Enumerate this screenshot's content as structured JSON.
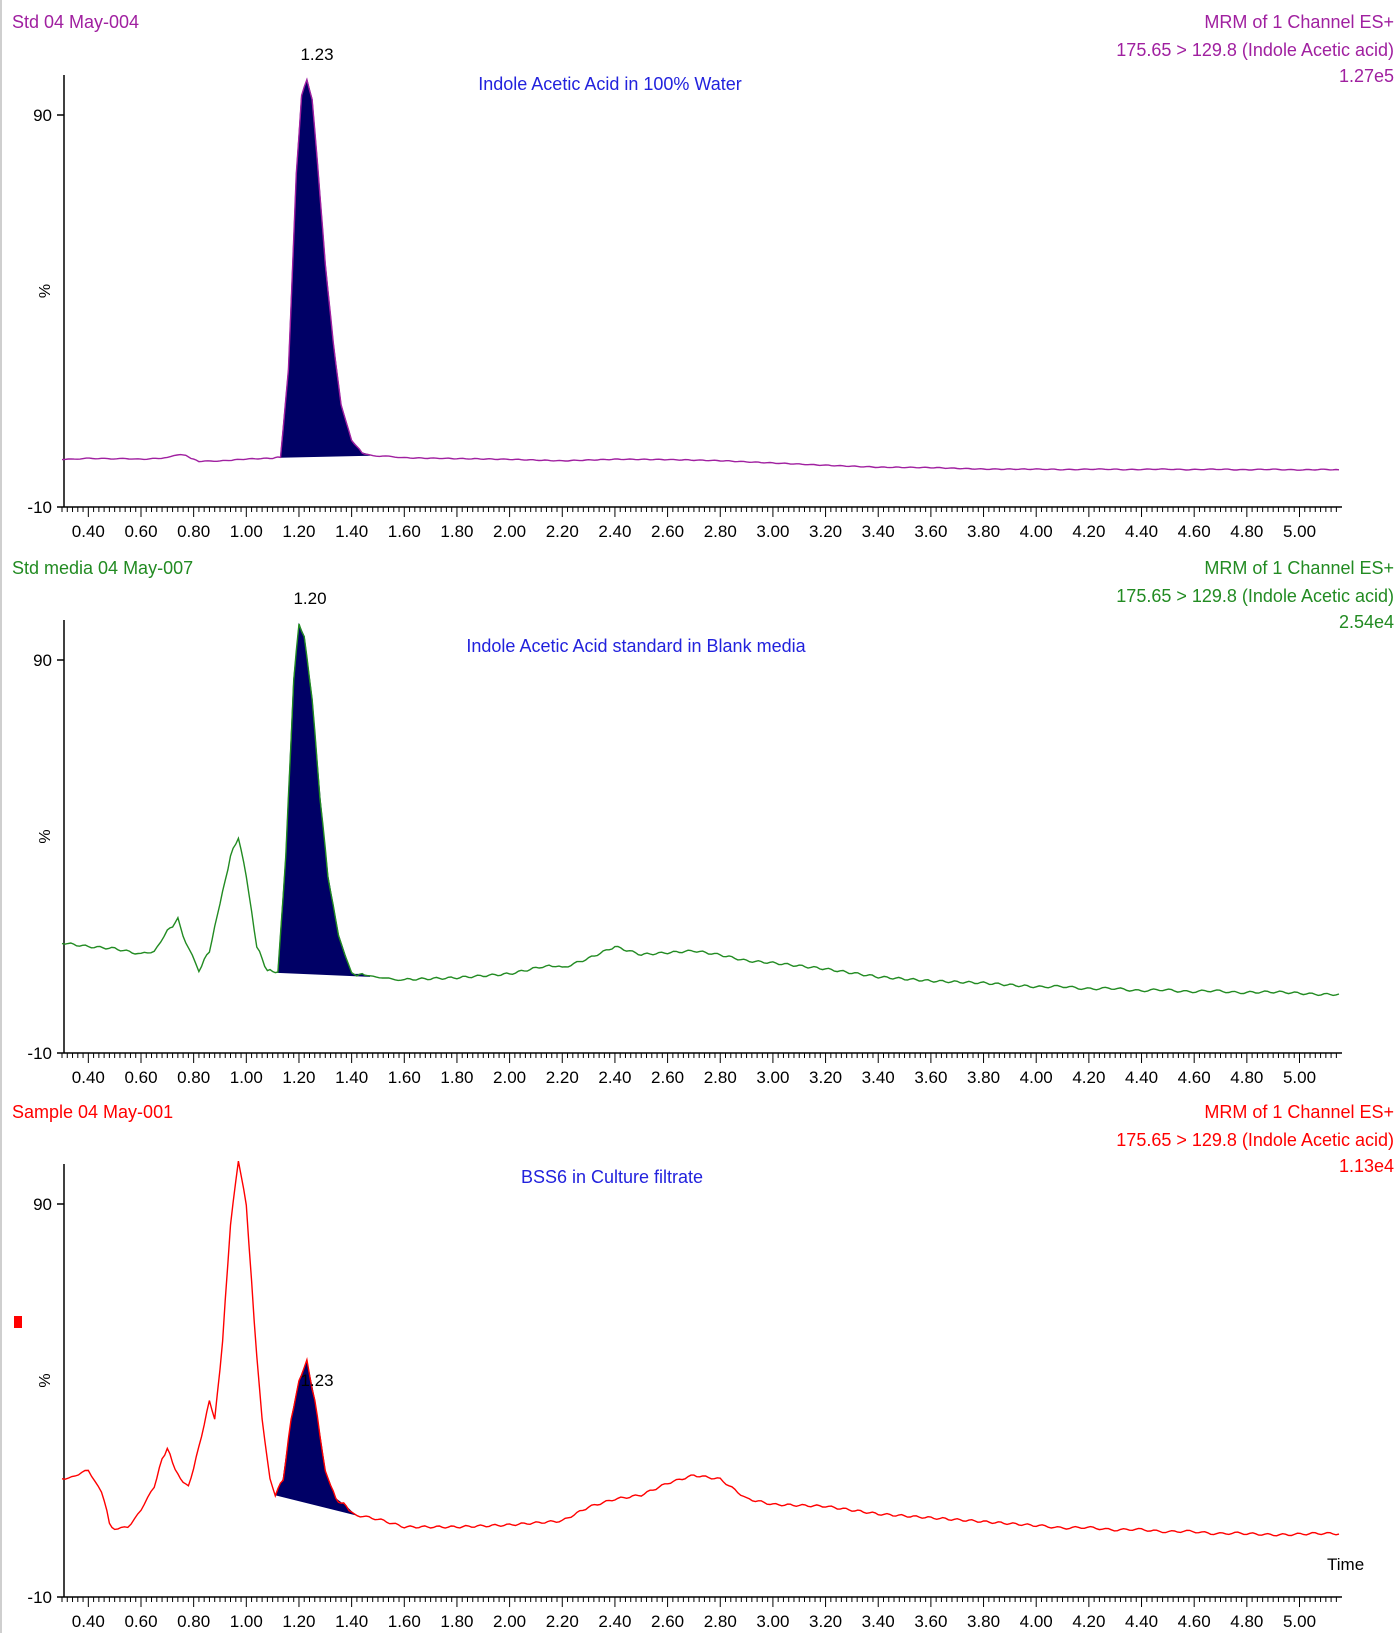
{
  "panels": [
    {
      "sample_name": "Std 04 May-004",
      "method": "MRM of 1 Channel ES+",
      "transition": "175.65 > 129.8 (Indole Acetic acid)",
      "intensity": "1.27e5",
      "annotation": "Indole Acetic Acid in 100% Water",
      "peak_label": "1.23",
      "y_tick_top": "90",
      "y_tick_bottom": "-10",
      "y_axis_label": "%"
    },
    {
      "sample_name": "Std media 04 May-007",
      "method": "MRM of 1 Channel ES+",
      "transition": "175.65 > 129.8 (Indole Acetic acid)",
      "intensity": "2.54e4",
      "annotation": "Indole Acetic Acid standard in Blank media",
      "peak_label": "1.20",
      "y_tick_top": "90",
      "y_tick_bottom": "-10",
      "y_axis_label": "%"
    },
    {
      "sample_name": "Sample 04 May-001",
      "method": "MRM of 1 Channel ES+",
      "transition": "175.65 > 129.8 (Indole Acetic acid)",
      "intensity": "1.13e4",
      "annotation": "BSS6 in Culture filtrate",
      "peak_label": "1.23",
      "y_tick_top": "90",
      "y_tick_bottom": "-10",
      "y_axis_label": "%"
    }
  ],
  "x_axis_title": "Time",
  "x_tick_labels": [
    "0.40",
    "0.60",
    "0.80",
    "1.00",
    "1.20",
    "1.40",
    "1.60",
    "1.80",
    "2.00",
    "2.20",
    "2.40",
    "2.60",
    "2.80",
    "3.00",
    "3.20",
    "3.40",
    "3.60",
    "3.80",
    "4.00",
    "4.20",
    "4.40",
    "4.60",
    "4.80",
    "5.00"
  ],
  "colors": {
    "panel1_trace": "#a020a0",
    "panel2_trace": "#228b22",
    "panel3_trace": "#ff0000",
    "peak_fill": "#000066",
    "annotation": "#2222dd",
    "marker": "#ff0000"
  },
  "chart_data": [
    {
      "type": "line",
      "title": "Indole Acetic Acid in 100% Water",
      "ylabel": "%",
      "xlabel": "Time",
      "xlim": [
        0.3,
        5.15
      ],
      "ylim": [
        -10,
        100
      ],
      "shaded_peak": {
        "rt": 1.23,
        "start": 1.13,
        "end": 1.47
      },
      "series": [
        {
          "name": "175.65 > 129.8 (Indole Acetic acid)",
          "x": [
            0.3,
            0.45,
            0.6,
            0.7,
            0.75,
            0.78,
            0.82,
            0.9,
            1.0,
            1.1,
            1.13,
            1.16,
            1.19,
            1.21,
            1.23,
            1.25,
            1.27,
            1.3,
            1.33,
            1.36,
            1.4,
            1.44,
            1.47,
            1.6,
            1.8,
            2.0,
            2.2,
            2.4,
            2.6,
            2.8,
            3.0,
            3.2,
            3.4,
            3.6,
            3.8,
            4.0,
            4.5,
            5.15
          ],
          "y": [
            2.2,
            2.4,
            2.2,
            2.6,
            3.5,
            2.8,
            1.6,
            1.8,
            2.3,
            2.5,
            2.7,
            25,
            75,
            95,
            99,
            94,
            78,
            52,
            32,
            16,
            7,
            3.8,
            3.2,
            2.6,
            2.4,
            2.2,
            1.8,
            2.2,
            2.1,
            1.8,
            1.2,
            0.6,
            0.1,
            0.0,
            -0.4,
            -0.4,
            -0.4,
            -0.5
          ]
        }
      ]
    },
    {
      "type": "line",
      "title": "Indole Acetic Acid standard in Blank media",
      "ylabel": "%",
      "xlabel": "Time",
      "xlim": [
        0.3,
        5.15
      ],
      "ylim": [
        -10,
        100
      ],
      "shaded_peak": {
        "rt": 1.2,
        "start": 1.12,
        "end": 1.47
      },
      "series": [
        {
          "name": "175.65 > 129.8 (Indole Acetic acid)",
          "x": [
            0.3,
            0.4,
            0.5,
            0.6,
            0.65,
            0.7,
            0.74,
            0.77,
            0.82,
            0.86,
            0.9,
            0.94,
            0.97,
            1.0,
            1.04,
            1.08,
            1.12,
            1.15,
            1.18,
            1.2,
            1.22,
            1.25,
            1.28,
            1.31,
            1.35,
            1.4,
            1.44,
            1.47,
            1.6,
            1.8,
            2.0,
            2.1,
            2.15,
            2.2,
            2.3,
            2.4,
            2.5,
            2.6,
            2.7,
            2.8,
            2.9,
            3.0,
            3.2,
            3.4,
            3.6,
            3.8,
            4.0,
            4.4,
            4.8,
            5.15
          ],
          "y": [
            18,
            17,
            16.5,
            15,
            16,
            21,
            24,
            18,
            11,
            16,
            28,
            40,
            45,
            35,
            17,
            11,
            10.5,
            40,
            85,
            99,
            96,
            80,
            55,
            35,
            20,
            10,
            10,
            9.5,
            8.5,
            9,
            10,
            11.5,
            12.5,
            11.5,
            14,
            17,
            15,
            15.5,
            16,
            15,
            13.5,
            13,
            11.5,
            9.5,
            8.5,
            8,
            7,
            6,
            5.5,
            5
          ]
        }
      ]
    },
    {
      "type": "line",
      "title": "BSS6 in Culture filtrate",
      "ylabel": "%",
      "xlabel": "Time",
      "xlim": [
        0.3,
        5.15
      ],
      "ylim": [
        -10,
        100
      ],
      "shaded_peak": {
        "rt": 1.23,
        "start": 1.11,
        "end": 1.41
      },
      "series": [
        {
          "name": "175.65 > 129.8 (Indole Acetic acid)",
          "x": [
            0.3,
            0.35,
            0.4,
            0.45,
            0.48,
            0.5,
            0.55,
            0.6,
            0.65,
            0.68,
            0.7,
            0.72,
            0.75,
            0.78,
            0.82,
            0.86,
            0.88,
            0.91,
            0.94,
            0.97,
            1.0,
            1.03,
            1.06,
            1.09,
            1.11,
            1.14,
            1.17,
            1.2,
            1.23,
            1.26,
            1.3,
            1.34,
            1.38,
            1.41,
            1.5,
            1.6,
            1.8,
            2.0,
            2.2,
            2.3,
            2.4,
            2.5,
            2.6,
            2.7,
            2.8,
            2.9,
            3.0,
            3.2,
            3.4,
            3.6,
            3.8,
            4.0,
            4.4,
            4.8,
            5.15
          ],
          "y": [
            20,
            21,
            22,
            17,
            9,
            7,
            8,
            12,
            18,
            25,
            28,
            24,
            20,
            18,
            28,
            40,
            35,
            55,
            85,
            101,
            90,
            60,
            35,
            20,
            16,
            20,
            35,
            45,
            50,
            40,
            22,
            15,
            13,
            11,
            10,
            8,
            8,
            8.5,
            9.5,
            13,
            15,
            16,
            19,
            21,
            20,
            15,
            13.5,
            13,
            11,
            10,
            9,
            8,
            7,
            6,
            6
          ]
        }
      ]
    }
  ]
}
